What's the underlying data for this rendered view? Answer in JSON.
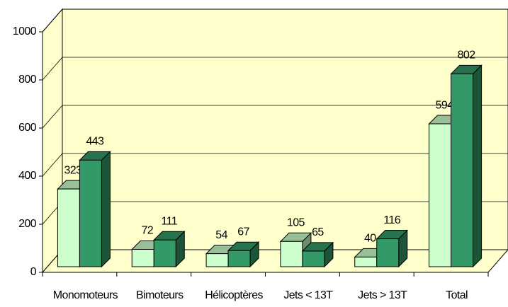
{
  "chart_data": {
    "type": "bar3d",
    "categories": [
      "Monomoteurs",
      "Bimoteurs",
      "Hélicoptères",
      "Jets < 13T",
      "Jets > 13T",
      "Total"
    ],
    "series": [
      {
        "color": "#ccffcc",
        "values": [
          323,
          72,
          54,
          105,
          40,
          594
        ]
      },
      {
        "color": "#339966",
        "values": [
          443,
          111,
          67,
          65,
          116,
          802
        ]
      }
    ],
    "ylim": [
      0,
      1000
    ],
    "yticks": [
      0,
      200,
      400,
      600,
      800,
      1000
    ],
    "grid": true
  }
}
